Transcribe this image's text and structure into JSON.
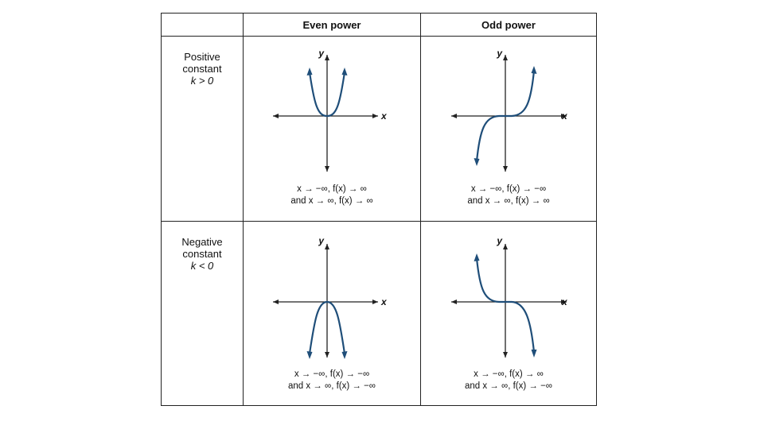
{
  "headers": {
    "even": "Even power",
    "odd": "Odd power"
  },
  "rows": {
    "positive": {
      "line1": "Positive",
      "line2": "constant",
      "line3": "k > 0"
    },
    "negative": {
      "line1": "Negative",
      "line2": "constant",
      "line3": "k < 0"
    }
  },
  "axes": {
    "x": "x",
    "y": "y"
  },
  "captions": {
    "pos_even": {
      "line1": "x → −∞, f(x) → ∞",
      "line2": "and x → ∞, f(x) → ∞"
    },
    "pos_odd": {
      "line1": "x → −∞, f(x) → −∞",
      "line2": "and x → ∞, f(x) → ∞"
    },
    "neg_even": {
      "line1": "x → −∞, f(x) → −∞",
      "line2": "and x → ∞, f(x) → −∞"
    },
    "neg_odd": {
      "line1": "x → −∞, f(x) → ∞",
      "line2": "and x → ∞, f(x) → −∞"
    }
  },
  "colors": {
    "curve": "#1f4e79",
    "axis": "#222222",
    "border": "#222222"
  }
}
